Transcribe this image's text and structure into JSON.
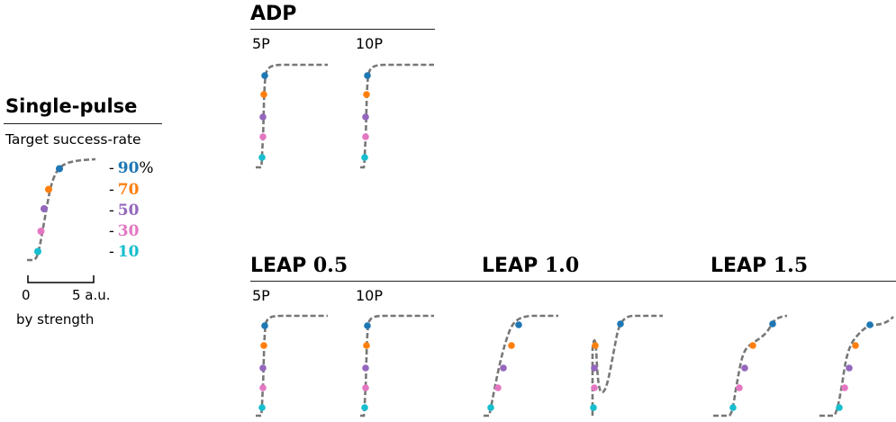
{
  "single_pulse": {
    "title": "Single-pulse",
    "subtitle": "Target success-rate",
    "levels": [
      {
        "value": "90",
        "suffix": "%",
        "color": "#1f77b4"
      },
      {
        "value": "70",
        "suffix": "",
        "color": "#ff7f0e"
      },
      {
        "value": "50",
        "suffix": "",
        "color": "#9467bd"
      },
      {
        "value": "30",
        "suffix": "",
        "color": "#e377c2"
      },
      {
        "value": "10",
        "suffix": "",
        "color": "#17becf"
      }
    ],
    "scale": {
      "start": "0",
      "end": "5 a.u."
    },
    "axis_label": "by strength"
  },
  "groups": [
    {
      "name": "ADP",
      "param": "",
      "columns": [
        "5P",
        "10P"
      ]
    },
    {
      "name": "LEAP",
      "param": "0.5",
      "columns": [
        "5P",
        "10P"
      ]
    },
    {
      "name": "LEAP",
      "param": "1.0",
      "columns": []
    },
    {
      "name": "LEAP",
      "param": "1.5",
      "columns": []
    }
  ],
  "curve_color": "#777777"
}
